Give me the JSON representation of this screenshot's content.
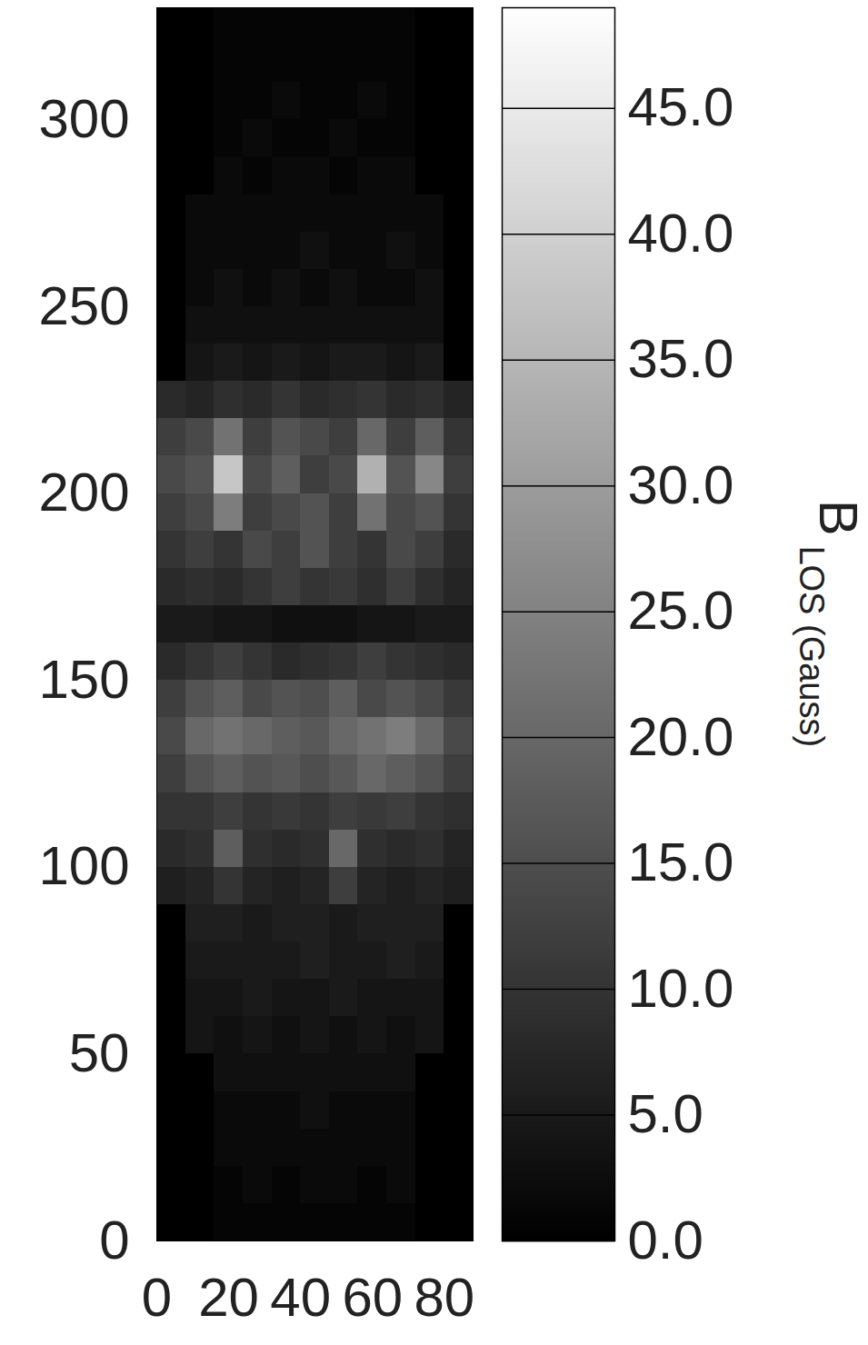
{
  "chart_data": {
    "type": "heatmap",
    "xlim": [
      0,
      88
    ],
    "xticks": [
      0,
      20,
      40,
      60,
      80
    ],
    "ylim": [
      0,
      330
    ],
    "yticks": [
      0,
      50,
      100,
      150,
      200,
      250,
      300
    ],
    "x_bins": [
      0,
      8,
      16,
      24,
      32,
      40,
      48,
      56,
      64,
      72,
      80,
      88
    ],
    "y_bins": [
      330,
      320,
      310,
      300,
      290,
      280,
      270,
      260,
      250,
      240,
      230,
      220,
      210,
      200,
      190,
      180,
      170,
      160,
      150,
      140,
      130,
      120,
      110,
      100,
      90,
      80,
      70,
      60,
      50,
      40,
      30,
      20,
      10,
      0
    ],
    "cells": [
      [
        null,
        null,
        1,
        1,
        1,
        1,
        1,
        1,
        1,
        null,
        null
      ],
      [
        null,
        null,
        1,
        1,
        1,
        1,
        1,
        1,
        1,
        null,
        null
      ],
      [
        null,
        null,
        1,
        1,
        2,
        1,
        1,
        2,
        1,
        null,
        null
      ],
      [
        null,
        null,
        1,
        2,
        1,
        1,
        2,
        1,
        1,
        null,
        null
      ],
      [
        null,
        null,
        2,
        1,
        2,
        2,
        1,
        2,
        2,
        null,
        null
      ],
      [
        null,
        2,
        2,
        2,
        2,
        2,
        2,
        2,
        2,
        2,
        null
      ],
      [
        null,
        2,
        2,
        2,
        2,
        3,
        2,
        2,
        3,
        2,
        null
      ],
      [
        null,
        2,
        3,
        2,
        3,
        2,
        3,
        2,
        2,
        3,
        null
      ],
      [
        null,
        3,
        3,
        3,
        3,
        3,
        3,
        3,
        3,
        3,
        null
      ],
      [
        null,
        4,
        5,
        4,
        5,
        4,
        5,
        5,
        4,
        5,
        null
      ],
      [
        8,
        7,
        9,
        8,
        10,
        8,
        9,
        10,
        8,
        9,
        7
      ],
      [
        12,
        14,
        22,
        12,
        16,
        14,
        12,
        20,
        12,
        18,
        10
      ],
      [
        14,
        16,
        38,
        14,
        18,
        12,
        14,
        34,
        16,
        26,
        12
      ],
      [
        12,
        14,
        24,
        12,
        14,
        16,
        12,
        22,
        14,
        16,
        10
      ],
      [
        10,
        12,
        10,
        14,
        12,
        16,
        12,
        10,
        14,
        12,
        8
      ],
      [
        8,
        9,
        8,
        10,
        12,
        10,
        11,
        9,
        12,
        9,
        7
      ],
      [
        5,
        5,
        4,
        4,
        3,
        3,
        3,
        4,
        4,
        5,
        5
      ],
      [
        8,
        10,
        12,
        10,
        8,
        9,
        10,
        12,
        10,
        9,
        8
      ],
      [
        12,
        16,
        18,
        14,
        16,
        15,
        18,
        14,
        16,
        14,
        11
      ],
      [
        14,
        20,
        22,
        20,
        18,
        17,
        20,
        22,
        24,
        20,
        14
      ],
      [
        12,
        16,
        18,
        16,
        17,
        15,
        17,
        20,
        18,
        16,
        12
      ],
      [
        10,
        10,
        12,
        10,
        11,
        10,
        12,
        11,
        12,
        10,
        9
      ],
      [
        8,
        9,
        18,
        9,
        8,
        9,
        20,
        9,
        8,
        9,
        7
      ],
      [
        6,
        7,
        10,
        7,
        6,
        7,
        12,
        7,
        6,
        7,
        6
      ],
      [
        null,
        6,
        6,
        5,
        6,
        6,
        5,
        6,
        6,
        6,
        null
      ],
      [
        null,
        5,
        5,
        5,
        5,
        6,
        5,
        5,
        6,
        5,
        null
      ],
      [
        null,
        4,
        4,
        5,
        4,
        4,
        5,
        4,
        4,
        4,
        null
      ],
      [
        null,
        4,
        3,
        4,
        3,
        4,
        3,
        4,
        3,
        4,
        null
      ],
      [
        null,
        null,
        3,
        3,
        3,
        3,
        3,
        3,
        3,
        null,
        null
      ],
      [
        null,
        null,
        2,
        2,
        2,
        3,
        2,
        2,
        2,
        null,
        null
      ],
      [
        null,
        null,
        2,
        2,
        2,
        2,
        2,
        2,
        2,
        null,
        null
      ],
      [
        null,
        null,
        1,
        2,
        1,
        2,
        2,
        1,
        2,
        null,
        null
      ],
      [
        null,
        null,
        1,
        1,
        1,
        1,
        1,
        1,
        1,
        null,
        null
      ]
    ],
    "colorbar_range": [
      0,
      49
    ],
    "colorbar_ticks": [
      {
        "value": 0,
        "label": "0.0"
      },
      {
        "value": 5,
        "label": "5.0"
      },
      {
        "value": 10,
        "label": "10.0"
      },
      {
        "value": 15,
        "label": "15.0"
      },
      {
        "value": 20,
        "label": "20.0"
      },
      {
        "value": 25,
        "label": "25.0"
      },
      {
        "value": 30,
        "label": "30.0"
      },
      {
        "value": 35,
        "label": "35.0"
      },
      {
        "value": 40,
        "label": "40.0"
      },
      {
        "value": 45,
        "label": "45.0"
      }
    ],
    "colorbar_label": {
      "text": "B",
      "subscript": "LOS",
      "unit": "(Gauss)"
    }
  }
}
